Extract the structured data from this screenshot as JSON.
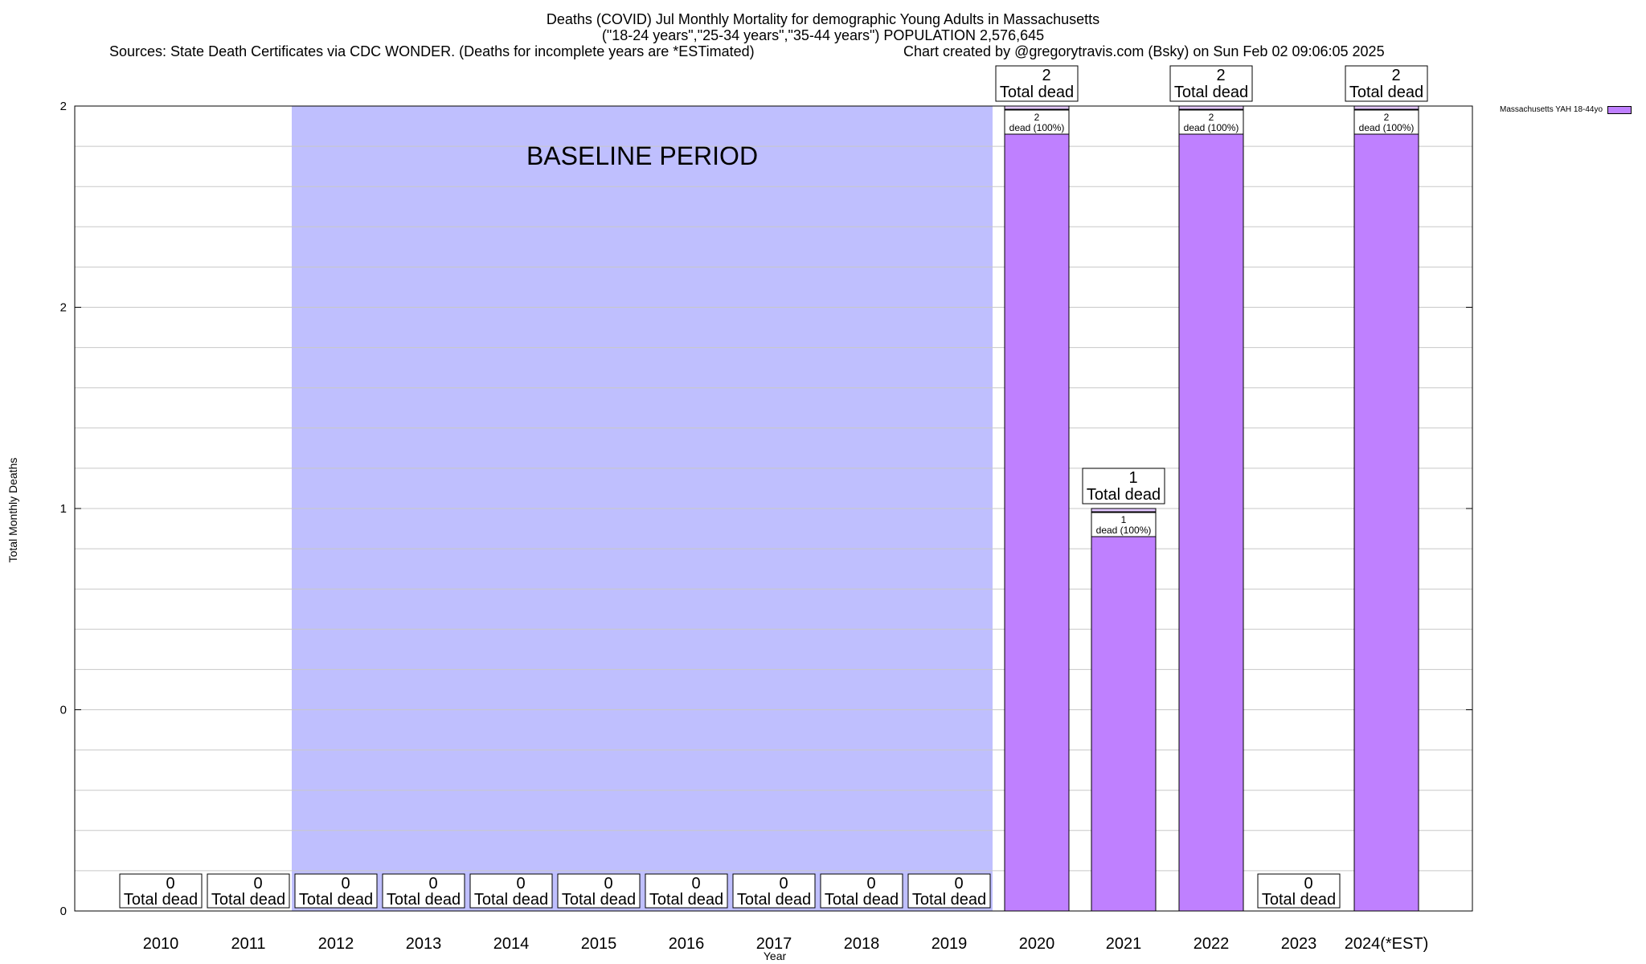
{
  "chart_data": {
    "type": "bar",
    "title": "Deaths (COVID) Jul Monthly Mortality for demographic Young Adults in Massachusetts",
    "subtitle": "(\"18-24 years\",\"25-34 years\",\"35-44 years\") POPULATION 2,576,645",
    "sources": "Sources: State Death Certificates via CDC WONDER. (Deaths for incomplete years are *ESTimated)",
    "credit": "Chart created by @gregorytravis.com (Bsky) on Sun Feb 02 09:06:05 2025",
    "xlabel": "Year",
    "ylabel": "Total Monthly Deaths",
    "categories": [
      "2010",
      "2011",
      "2012",
      "2013",
      "2014",
      "2015",
      "2016",
      "2017",
      "2018",
      "2019",
      "2020",
      "2021",
      "2022",
      "2023",
      "2024(*EST)"
    ],
    "series": [
      {
        "name": "Massachusetts YAH 18-44yo",
        "values": [
          0,
          0,
          0,
          0,
          0,
          0,
          0,
          0,
          0,
          0,
          2,
          1,
          2,
          0,
          2
        ]
      }
    ],
    "ylim": [
      0,
      2
    ],
    "ytick_labels": [
      "0",
      "0",
      "1",
      "2",
      "2"
    ],
    "total_label_suffix": "Total dead",
    "inner_label_suffix": "dead (100%)",
    "baseline_label": "BASELINE PERIOD",
    "baseline_range": [
      "2012",
      "2019"
    ],
    "grid": true,
    "legend_position": "top-right",
    "colors": {
      "bar": "#bf80ff",
      "baseline": "#bfbffe",
      "bar_cap": "#e3c7ff"
    }
  }
}
